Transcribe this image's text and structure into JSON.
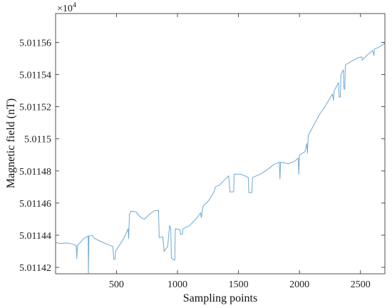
{
  "chart_data": {
    "type": "line",
    "xlabel": "Sampling points",
    "ylabel": "Magnetic field (nT)",
    "exponent_base": "×10",
    "exponent_power": "4",
    "xlim": [
      1,
      2700
    ],
    "ylim": [
      5.011416,
      5.011578
    ],
    "x_ticks": [
      500,
      1000,
      1500,
      2000,
      2500
    ],
    "x_tick_labels": [
      "500",
      "1000",
      "1500",
      "2000",
      "2500"
    ],
    "y_ticks": [
      5.01142,
      5.01144,
      5.01146,
      5.01148,
      5.0115,
      5.01152,
      5.01154,
      5.01156
    ],
    "y_tick_labels": [
      "5.01142",
      "5.01144",
      "5.01146",
      "5.01148",
      "5.0115",
      "5.01152",
      "5.01154",
      "5.01156"
    ],
    "grid": false,
    "line_color": "#6fa8d4",
    "series": [
      {
        "values_xy": [
          [
            1,
            5.0114355
          ],
          [
            40,
            5.0114348
          ],
          [
            90,
            5.0114352
          ],
          [
            140,
            5.0114345
          ],
          [
            170,
            5.0114336
          ],
          [
            175,
            5.0114255
          ],
          [
            180,
            5.0114336
          ],
          [
            230,
            5.0114378
          ],
          [
            268,
            5.0114395
          ],
          [
            270,
            5.0114164
          ],
          [
            274,
            5.0114395
          ],
          [
            300,
            5.01144
          ],
          [
            320,
            5.011438
          ],
          [
            370,
            5.0114362
          ],
          [
            420,
            5.0114345
          ],
          [
            470,
            5.011433
          ],
          [
            478,
            5.011425
          ],
          [
            488,
            5.011425
          ],
          [
            492,
            5.01143
          ],
          [
            560,
            5.011438
          ],
          [
            595,
            5.011444
          ],
          [
            600,
            5.011438
          ],
          [
            606,
            5.011453
          ],
          [
            620,
            5.011455
          ],
          [
            660,
            5.0114545
          ],
          [
            700,
            5.011451
          ],
          [
            730,
            5.01145
          ],
          [
            770,
            5.011453
          ],
          [
            810,
            5.0114552
          ],
          [
            845,
            5.0114555
          ],
          [
            850,
            5.0114385
          ],
          [
            880,
            5.011439
          ],
          [
            890,
            5.01143
          ],
          [
            920,
            5.011433
          ],
          [
            935,
            5.011446
          ],
          [
            945,
            5.011444
          ],
          [
            950,
            5.0114255
          ],
          [
            978,
            5.0114245
          ],
          [
            982,
            5.011444
          ],
          [
            1020,
            5.0114435
          ],
          [
            1025,
            5.0114405
          ],
          [
            1040,
            5.0114405
          ],
          [
            1045,
            5.011444
          ],
          [
            1100,
            5.011446
          ],
          [
            1150,
            5.01145
          ],
          [
            1190,
            5.011454
          ],
          [
            1195,
            5.011451
          ],
          [
            1210,
            5.011458
          ],
          [
            1260,
            5.011462
          ],
          [
            1300,
            5.011467
          ],
          [
            1310,
            5.01147
          ],
          [
            1340,
            5.011471
          ],
          [
            1380,
            5.011474
          ],
          [
            1420,
            5.011477
          ],
          [
            1430,
            5.011467
          ],
          [
            1460,
            5.011467
          ],
          [
            1465,
            5.011478
          ],
          [
            1520,
            5.011478
          ],
          [
            1580,
            5.011476
          ],
          [
            1585,
            5.0114665
          ],
          [
            1610,
            5.0114665
          ],
          [
            1615,
            5.011476
          ],
          [
            1680,
            5.011478
          ],
          [
            1740,
            5.011481
          ],
          [
            1790,
            5.011484
          ],
          [
            1835,
            5.0114855
          ],
          [
            1840,
            5.011475
          ],
          [
            1845,
            5.0114855
          ],
          [
            1910,
            5.0114845
          ],
          [
            1960,
            5.011486
          ],
          [
            1990,
            5.011488
          ],
          [
            1995,
            5.011478
          ],
          [
            2000,
            5.01149
          ],
          [
            2045,
            5.011492
          ],
          [
            2060,
            5.011497
          ],
          [
            2065,
            5.011491
          ],
          [
            2072,
            5.011502
          ],
          [
            2120,
            5.011509
          ],
          [
            2170,
            5.011516
          ],
          [
            2200,
            5.011519
          ],
          [
            2240,
            5.011524
          ],
          [
            2270,
            5.011528
          ],
          [
            2278,
            5.011524
          ],
          [
            2285,
            5.01153
          ],
          [
            2320,
            5.011535
          ],
          [
            2325,
            5.011526
          ],
          [
            2335,
            5.011526
          ],
          [
            2340,
            5.01154
          ],
          [
            2360,
            5.011543
          ],
          [
            2365,
            5.011531
          ],
          [
            2372,
            5.011531
          ],
          [
            2376,
            5.011546
          ],
          [
            2420,
            5.011548
          ],
          [
            2480,
            5.0115505
          ],
          [
            2512,
            5.011551
          ],
          [
            2515,
            5.011549
          ],
          [
            2520,
            5.0115495
          ],
          [
            2560,
            5.0115525
          ],
          [
            2600,
            5.011555
          ],
          [
            2610,
            5.011552
          ],
          [
            2616,
            5.011556
          ],
          [
            2650,
            5.011557
          ],
          [
            2700,
            5.0115595
          ]
        ]
      }
    ]
  }
}
